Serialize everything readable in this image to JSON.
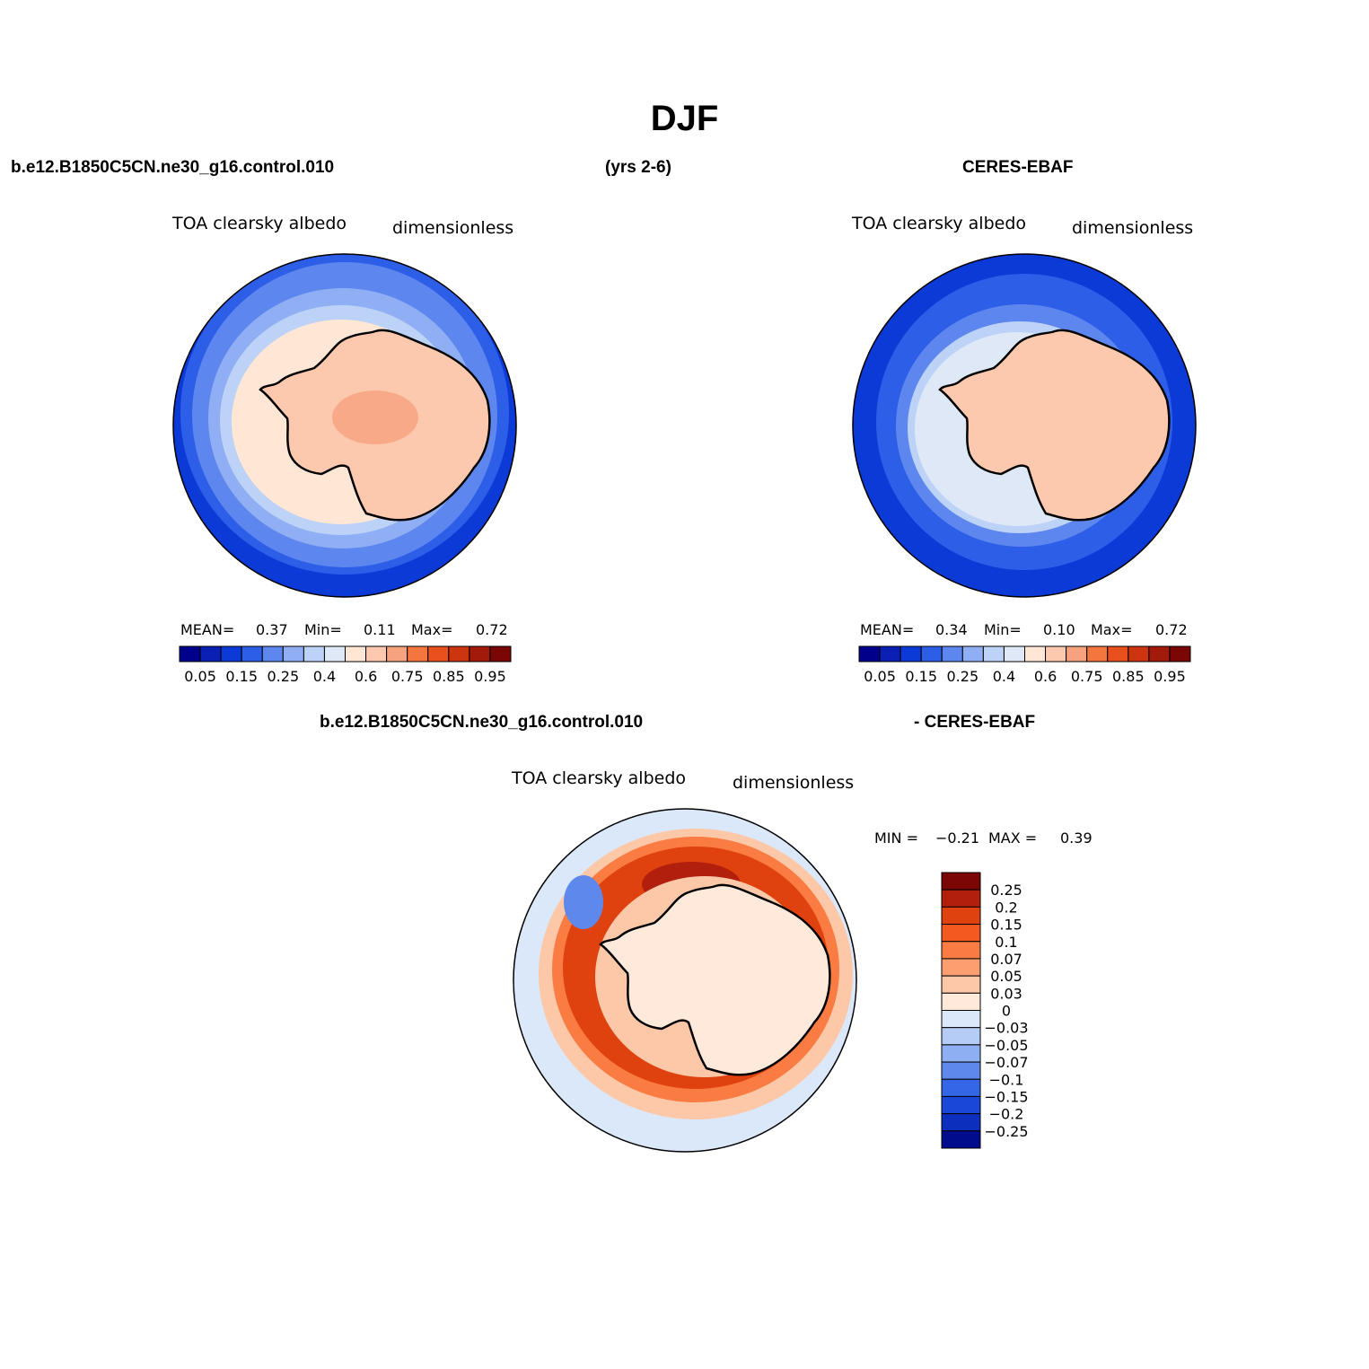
{
  "title": "DJF",
  "top_left_header": "b.e12.B1850C5CN.ne30_g16.control.010",
  "top_middle_header": "(yrs 2-6)",
  "top_right_header": "CERES-EBAF",
  "bottom_header_left": "b.e12.B1850C5CN.ne30_g16.control.010",
  "bottom_header_right": "- CERES-EBAF",
  "panels": [
    {
      "variable": "TOA clearsky albedo",
      "units": "dimensionless",
      "mean_label": "MEAN=",
      "mean": "0.37",
      "min_label": "Min=",
      "min": "0.11",
      "max_label": "Max=",
      "max": "0.72"
    },
    {
      "variable": "TOA clearsky albedo",
      "units": "dimensionless",
      "mean_label": "MEAN=",
      "mean": "0.34",
      "min_label": "Min=",
      "min": "0.10",
      "max_label": "Max=",
      "max": "0.72"
    },
    {
      "variable": "TOA clearsky albedo",
      "units": "dimensionless",
      "min_label": "MIN =",
      "min": "−0.21",
      "max_label": "MAX =",
      "max": "0.39"
    }
  ],
  "abs_colorbar": {
    "colors": [
      "#00008b",
      "#0a1fb4",
      "#0b3ad6",
      "#2d5ee8",
      "#5d87ef",
      "#8faef3",
      "#bdd2f7",
      "#dfe8f6",
      "#ffe6d5",
      "#fcc9ae",
      "#f6a27e",
      "#f2763e",
      "#e9501d",
      "#cd3510",
      "#a21a0a",
      "#7a0606"
    ],
    "tick_labels": [
      "0.05",
      "0.15",
      "0.25",
      "0.4",
      "0.6",
      "0.75",
      "0.85",
      "0.95"
    ]
  },
  "diff_colorbar": {
    "colors": [
      "#7a0606",
      "#b21f0c",
      "#e0420f",
      "#f45a20",
      "#fb7c42",
      "#fc9e70",
      "#fdc8a8",
      "#ffe9da",
      "#dbe8fa",
      "#b5cdf6",
      "#8eb0f2",
      "#5f88ec",
      "#3566e8",
      "#1b47d8",
      "#0d2fbe",
      "#000c8c"
    ],
    "tick_labels": [
      "0.25",
      "0.2",
      "0.15",
      "0.1",
      "0.07",
      "0.05",
      "0.03",
      "0",
      "−0.03",
      "−0.05",
      "−0.07",
      "−0.1",
      "−0.15",
      "−0.2",
      "−0.25"
    ]
  },
  "map_colors": {
    "ocean_deep": "#0b3ad6",
    "band_1": "#2d5ee8",
    "band_2": "#5d87ef",
    "band_3": "#8faef3",
    "band_4": "#bdd2f7",
    "band_5": "#dfe8f6",
    "ice": "#fcc9ae",
    "ice_interior": "#f6a27e",
    "diff_background": "#dbe8fa",
    "diff_red_dark": "#b21f0c",
    "diff_red": "#e0420f",
    "diff_orange": "#fb7c42",
    "diff_light": "#fdc8a8",
    "diff_pale": "#ffe9da",
    "diff_blue": "#5f88ec"
  }
}
